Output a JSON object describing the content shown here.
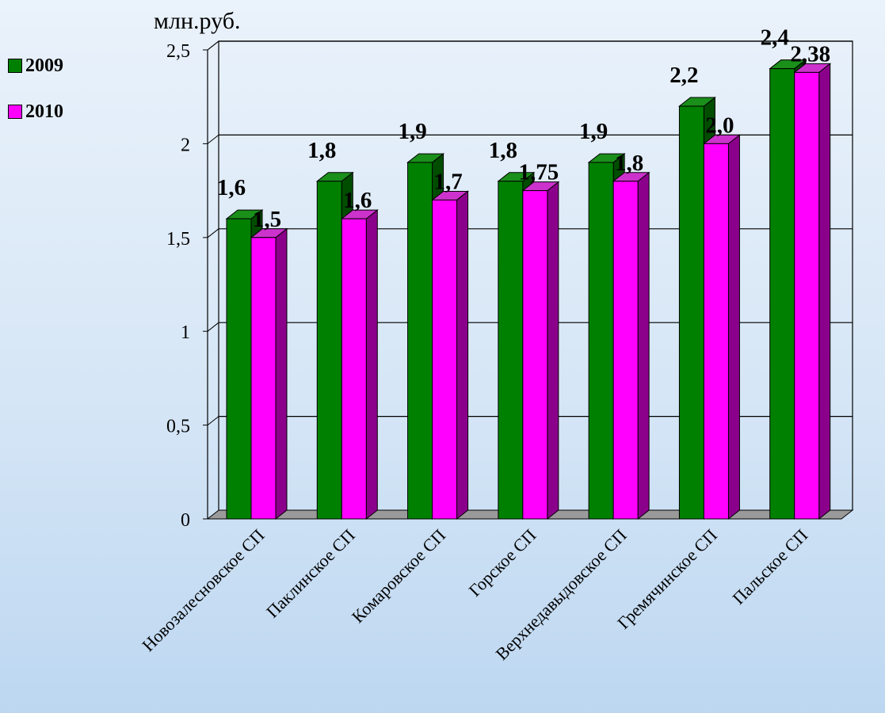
{
  "unit_label": "млн.руб.",
  "colors": {
    "series_2009": "#008000",
    "series_2009_side": "#004d00",
    "series_2009_top": "#1a8f1a",
    "series_2010": "#ff00ff",
    "series_2010_side": "#8b008b",
    "series_2010_top": "#cc33cc"
  },
  "chart_data": {
    "type": "bar",
    "title": "",
    "xlabel": "",
    "ylabel": "млн.руб.",
    "ylim": [
      0,
      2.5
    ],
    "y_ticks": [
      "0",
      "0,5",
      "1",
      "1,5",
      "2",
      "2,5"
    ],
    "y_tick_values": [
      0,
      0.5,
      1,
      1.5,
      2,
      2.5
    ],
    "grid": true,
    "legend_position": "left",
    "categories": [
      "Новозалесновское СП",
      "Паклинское СП",
      "Комаровское СП",
      "Горское СП",
      "Верхнедавыдовское СП",
      "Гремячинское СП",
      "Пальское СП"
    ],
    "series": [
      {
        "name": "2009",
        "values": [
          1.6,
          1.8,
          1.9,
          1.8,
          1.9,
          2.2,
          2.4
        ],
        "labels": [
          "1,6",
          "1,8",
          "1,9",
          "1,8",
          "1,9",
          "2,2",
          "2,4"
        ]
      },
      {
        "name": "2010",
        "values": [
          1.5,
          1.6,
          1.7,
          1.75,
          1.8,
          2.0,
          2.38
        ],
        "labels": [
          "1,5",
          "1,6",
          "1,7",
          "1,75",
          "1,8",
          "2,0",
          "2,38"
        ]
      }
    ]
  }
}
